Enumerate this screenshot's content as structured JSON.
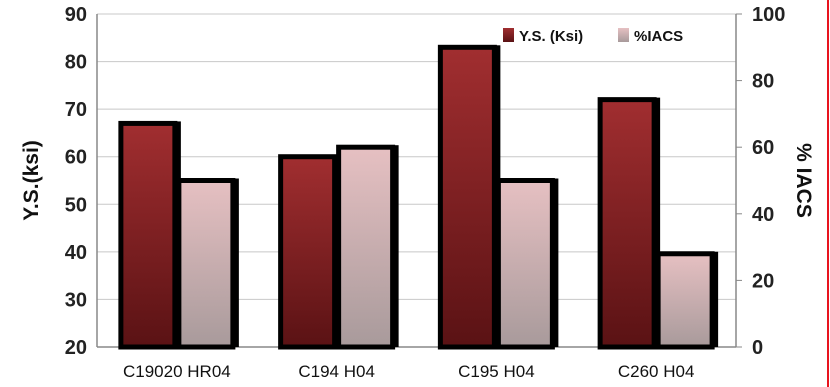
{
  "chart_data": {
    "type": "bar",
    "title": "",
    "categories": [
      "C19020 HR04",
      "C194 H04",
      "C195 H04",
      "C260 H04"
    ],
    "series": [
      {
        "name": "Y.S. (Ksi)",
        "axis": "left",
        "values": [
          67,
          60,
          83,
          72
        ],
        "color": "#8b2526"
      },
      {
        "name": "%IACS",
        "axis": "right",
        "values": [
          50,
          60,
          50,
          28
        ],
        "color": "#d9b0b2"
      }
    ],
    "ylabel": "Y.S.(ksi)",
    "y2label": "% IACS",
    "ylim": [
      20,
      90
    ],
    "y2lim": [
      0,
      100
    ],
    "yticks": [
      20,
      30,
      40,
      50,
      60,
      70,
      80,
      90
    ],
    "y2ticks": [
      0,
      20,
      40,
      60,
      80,
      100
    ],
    "grid": true,
    "legend_position": "top-right",
    "border_accent": "#e8141e"
  }
}
